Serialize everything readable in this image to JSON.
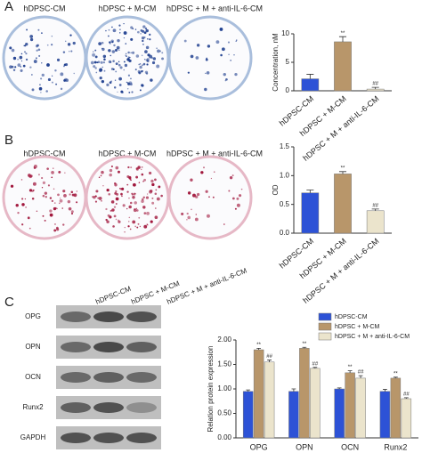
{
  "panels": {
    "a": {
      "label": "A",
      "dish_labels": [
        "hDPSC-CM",
        "hDPSC + M-CM",
        "hDPSC + M + anti-IL-6-CM"
      ]
    },
    "b": {
      "label": "B",
      "dish_labels": [
        "hDPSC-CM",
        "hDPSC + M-CM",
        "hDPSC + M + anti-IL-6-CM"
      ]
    },
    "c": {
      "label": "C",
      "lane_labels": [
        "hDPSC-CM",
        "hDPSC + M-CM",
        "hDPSC + M + anti-IL-6-CM"
      ],
      "blot_labels": [
        "OPG",
        "OPN",
        "OCN",
        "Runx2",
        "GAPDH"
      ]
    }
  },
  "chart_data": [
    {
      "type": "bar",
      "ylabel": "Concentration, nM",
      "categories": [
        "hDPSC-CM",
        "hDPSC + M-CM",
        "hDPSC + M + anti-IL-6-CM"
      ],
      "values": [
        2.1,
        8.6,
        0.3
      ],
      "errors": [
        0.8,
        0.9,
        0.3
      ],
      "annotations": [
        null,
        "**",
        "##"
      ],
      "colors": [
        "#2d52d6",
        "#b8966a",
        "#ebe4cc"
      ],
      "ylim": [
        0,
        10
      ],
      "yticks": [
        0,
        5,
        10
      ]
    },
    {
      "type": "bar",
      "ylabel": "OD",
      "categories": [
        "hDPSC-CM",
        "hDPSC + M-CM",
        "hDPSC + M + anti-IL-6-CM"
      ],
      "values": [
        0.7,
        1.03,
        0.39
      ],
      "errors": [
        0.05,
        0.04,
        0.03
      ],
      "annotations": [
        null,
        "**",
        "##"
      ],
      "colors": [
        "#2d52d6",
        "#b8966a",
        "#ebe4cc"
      ],
      "ylim": [
        0,
        1.5
      ],
      "yticks": [
        {
          "value": 0,
          "label": "0.0"
        },
        {
          "value": 0.5,
          "label": "0.5"
        },
        {
          "value": 1,
          "label": "1.0"
        },
        {
          "value": 1.5,
          "label": "1.5"
        }
      ]
    },
    {
      "type": "bar",
      "ylabel": "Relation protein expression",
      "categories": [
        "OPG",
        "OPN",
        "OCN",
        "Runx2"
      ],
      "series": [
        {
          "name": "hDPSC-CM",
          "color": "#2d52d6",
          "values": [
            0.95,
            0.95,
            1.0,
            0.95
          ],
          "errors": [
            0.03,
            0.05,
            0.02,
            0.04
          ],
          "annotations": [
            null,
            null,
            null,
            null
          ]
        },
        {
          "name": "hDPSC + M-CM",
          "color": "#b8966a",
          "values": [
            1.8,
            1.83,
            1.33,
            1.22
          ],
          "errors": [
            0.03,
            0.02,
            0.04,
            0.02
          ],
          "annotations": [
            "**",
            "**",
            "**",
            "**"
          ]
        },
        {
          "name": "hDPSC + M + anti-IL-6-CM",
          "color": "#ebe4cc",
          "values": [
            1.55,
            1.42,
            1.22,
            0.8
          ],
          "errors": [
            0.04,
            0.02,
            0.05,
            0.02
          ],
          "annotations": [
            "##",
            "##",
            "##",
            "##"
          ]
        }
      ],
      "ylim": [
        0,
        2
      ],
      "yticks": [
        {
          "value": 0,
          "label": "0.00"
        },
        {
          "value": 0.5,
          "label": "0.50"
        },
        {
          "value": 1,
          "label": "1.00"
        },
        {
          "value": 1.5,
          "label": "1.50"
        },
        {
          "value": 2,
          "label": "2.00"
        }
      ]
    }
  ]
}
